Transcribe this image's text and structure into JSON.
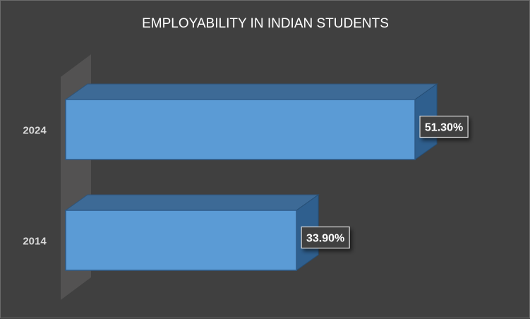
{
  "chart_data": {
    "type": "bar",
    "orientation": "horizontal",
    "style": "3d-clustered",
    "title": "EMPLOYABILITY IN INDIAN STUDENTS",
    "categories": [
      "2014",
      "2024"
    ],
    "values": [
      33.9,
      51.3
    ],
    "data_labels": [
      "33.90%",
      "51.30%"
    ],
    "value_unit": "%",
    "xlim": [
      0,
      60
    ],
    "xlabel": "",
    "ylabel": "",
    "grid": false,
    "legend": "none",
    "bar_color": "#5b9bd5",
    "background_color": "#404040"
  }
}
